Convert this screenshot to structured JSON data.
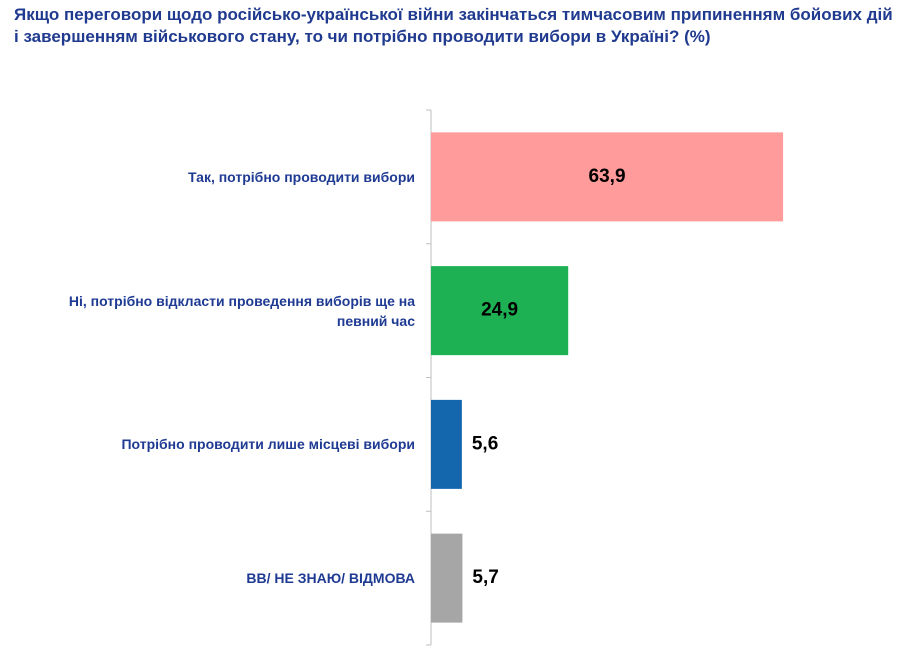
{
  "chart_data": {
    "type": "hbar",
    "title": "Якщо переговори щодо російсько-української війни закінчаться тимчасовим припиненням бойових дій і завершенням військового стану, то чи потрібно проводити вибори в Україні? (%)",
    "categories": [
      "Так, потрібно проводити вибори",
      "Ні, потрібно відкласти проведення виборів ще на певний час",
      "Потрібно проводити лише місцеві вибори",
      "ВВ/ НЕ ЗНАЮ/ ВІДМОВА"
    ],
    "values": [
      63.9,
      24.9,
      5.6,
      5.7
    ],
    "value_labels": [
      "63,9",
      "24,9",
      "5,6",
      "5,7"
    ],
    "colors": [
      "#ff9b9b",
      "#1db154",
      "#1567ad",
      "#a6a6a6"
    ]
  }
}
